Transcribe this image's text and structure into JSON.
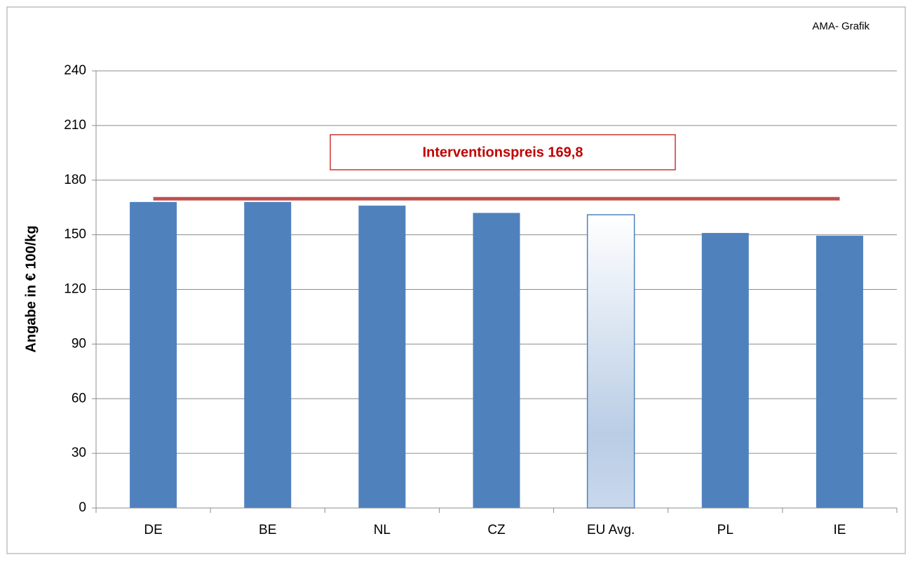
{
  "chart_data": {
    "type": "bar",
    "source": "AMA- Grafik",
    "ylabel": "Angabe in € 100/kg",
    "categories": [
      "DE",
      "BE",
      "NL",
      "CZ",
      "EU Avg.",
      "PL",
      "IE"
    ],
    "values": [
      168,
      168,
      166,
      162,
      161,
      151,
      149.5
    ],
    "color": "#4f81bd",
    "highlight_index": 4,
    "highlight_color": "#b9cde5",
    "reference_line": {
      "value": 169.8,
      "label": "Interventionspreis 169,8",
      "color": "#c0504d"
    },
    "ylim": [
      0,
      240
    ],
    "yticks": [
      0,
      30,
      60,
      90,
      120,
      150,
      180,
      210,
      240
    ],
    "grid": true
  }
}
